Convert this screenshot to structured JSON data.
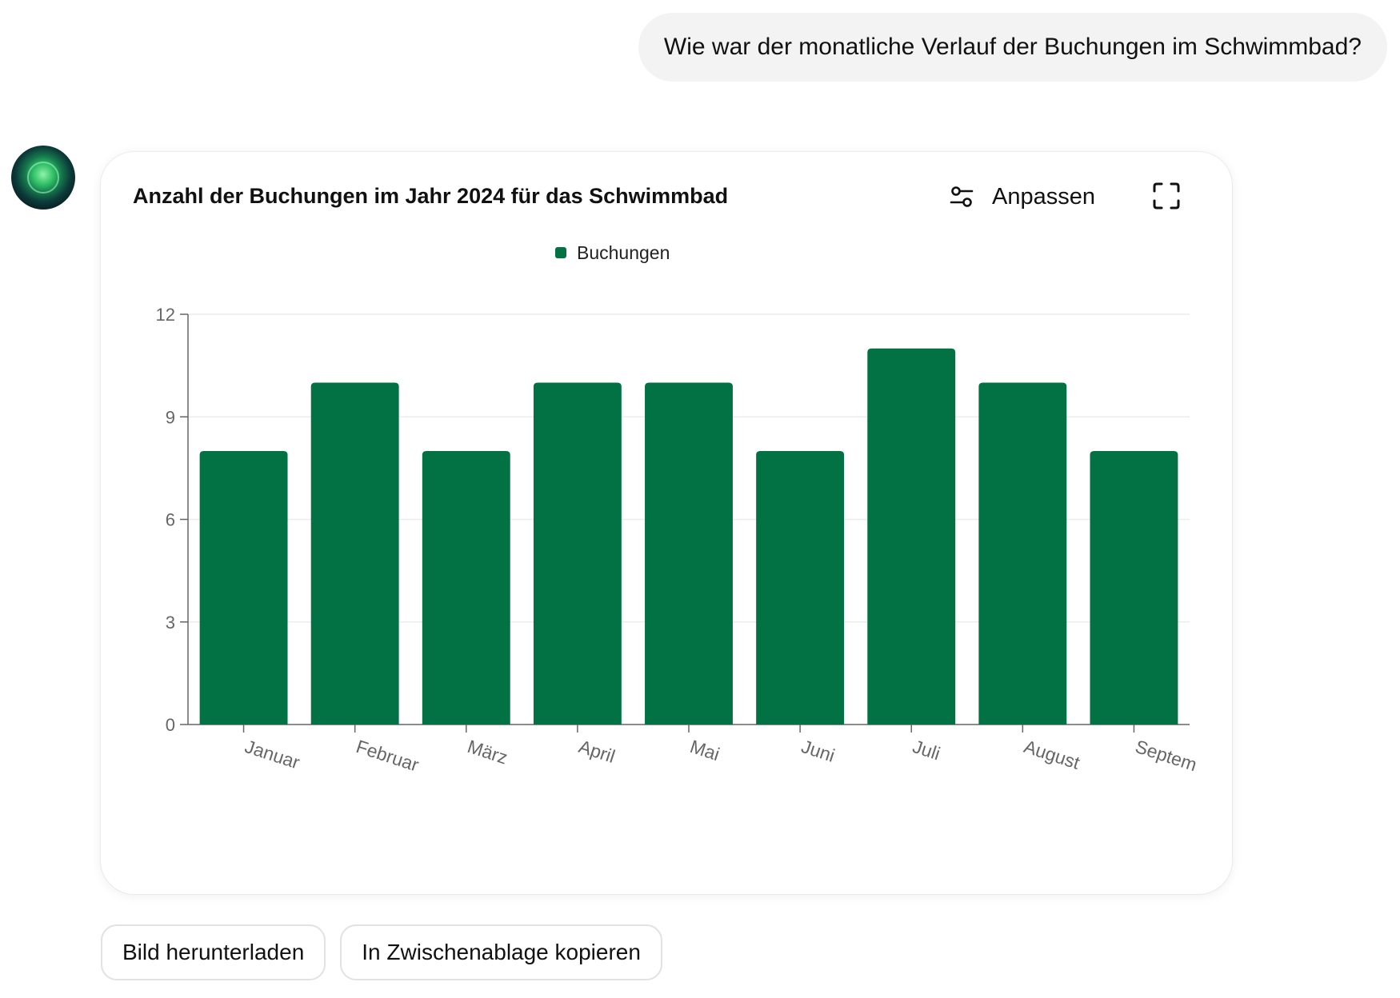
{
  "conversation": {
    "user_message": "Wie war der monatliche Verlauf der Buchungen im Schwimmbad?"
  },
  "assistant": {
    "avatar_icon": "assistant-orb-icon"
  },
  "card": {
    "title": "Anzahl der Buchungen im Jahr 2024 für das Schwimmbad",
    "customize_label": "Anpassen",
    "customize_icon": "sliders-icon",
    "expand_icon": "fullscreen-icon"
  },
  "actions": {
    "download_label": "Bild herunterladen",
    "copy_label": "In Zwischenablage kopieren"
  },
  "chart_data": {
    "type": "bar",
    "categories": [
      "Januar",
      "Februar",
      "März",
      "April",
      "Mai",
      "Juni",
      "Juli",
      "August",
      "Septem"
    ],
    "series": [
      {
        "name": "Buchungen",
        "values": [
          8,
          10,
          8,
          10,
          10,
          8,
          11,
          10,
          8
        ],
        "color": "#027244"
      }
    ],
    "title": "Anzahl der Buchungen im Jahr 2024 für das Schwimmbad",
    "xlabel": "",
    "ylabel": "",
    "ylim": [
      0,
      12
    ],
    "yticks": [
      0,
      3,
      6,
      9,
      12
    ],
    "grid": true,
    "legend": "top-center"
  }
}
